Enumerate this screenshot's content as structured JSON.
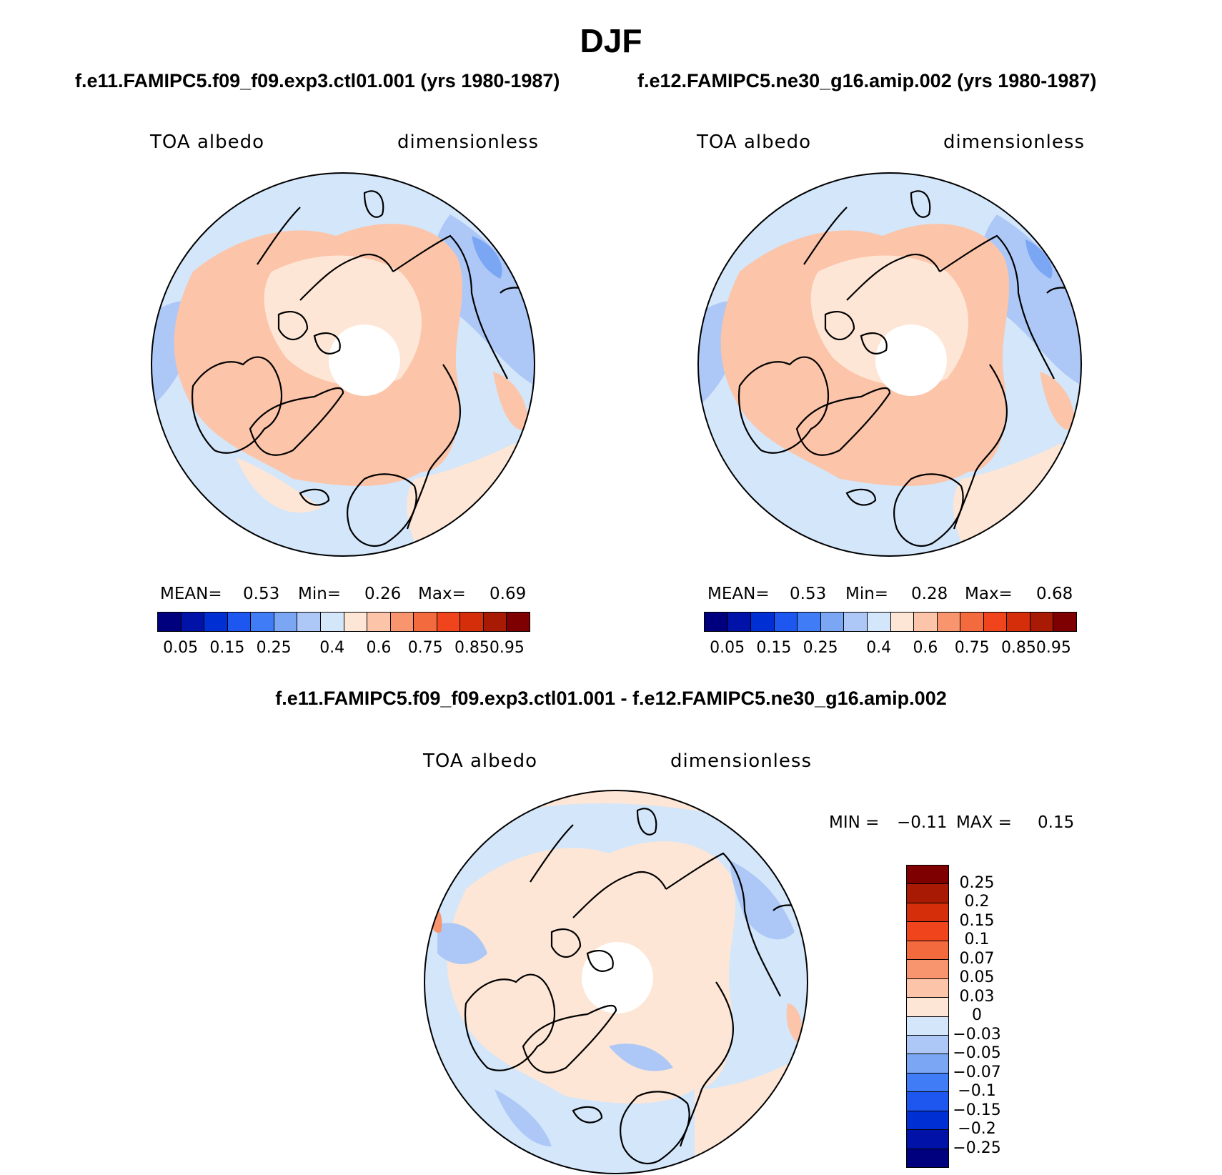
{
  "figure": {
    "title": "DJF",
    "diff_title": "f.e11.FAMIPC5.f09_f09.exp3.ctl01.001 - f.e12.FAMIPC5.ne30_g16.amip.002"
  },
  "panels": [
    {
      "id": "left",
      "case_title": "f.e11.FAMIPC5.f09_f09.exp3.ctl01.001 (yrs 1980-1987)",
      "variable": "TOA albedo",
      "units": "dimensionless",
      "stats": {
        "mean_label": "MEAN=",
        "mean": "0.53",
        "min_label": "Min=",
        "min": "0.26",
        "max_label": "Max=",
        "max": "0.69"
      },
      "colorbar_ticks": [
        "0.05",
        "0.15",
        "0.25",
        "0.4",
        "0.6",
        "0.75",
        "0.85",
        "0.95"
      ]
    },
    {
      "id": "right",
      "case_title": "f.e12.FAMIPC5.ne30_g16.amip.002 (yrs 1980-1987)",
      "variable": "TOA albedo",
      "units": "dimensionless",
      "stats": {
        "mean_label": "MEAN=",
        "mean": "0.53",
        "min_label": "Min=",
        "min": "0.28",
        "max_label": "Max=",
        "max": "0.68"
      },
      "colorbar_ticks": [
        "0.05",
        "0.15",
        "0.25",
        "0.4",
        "0.6",
        "0.75",
        "0.85",
        "0.95"
      ]
    }
  ],
  "difference_panel": {
    "variable": "TOA albedo",
    "units": "dimensionless",
    "min_label": "MIN =",
    "min": "−0.11",
    "max_label": "MAX =",
    "max": "0.15",
    "colorbar_ticks": [
      "0.25",
      "0.2",
      "0.15",
      "0.1",
      "0.07",
      "0.05",
      "0.03",
      "0",
      "−0.03",
      "−0.05",
      "−0.07",
      "−0.1",
      "−0.15",
      "−0.2",
      "−0.25"
    ]
  },
  "colors": {
    "abs_colorbar": [
      "#00007f",
      "#0012a8",
      "#0030d4",
      "#1d57f0",
      "#3f7cf5",
      "#7aa6f3",
      "#adc8f7",
      "#d3e6fa",
      "#fde6d6",
      "#fcc4a8",
      "#f9956e",
      "#f46a3f",
      "#f0441c",
      "#d42f0a",
      "#a81a04",
      "#7f0000"
    ],
    "diff_colorbar": [
      "#7f0000",
      "#a81a04",
      "#d42f0a",
      "#f0441c",
      "#f46a3f",
      "#f9956e",
      "#fcc4a8",
      "#fde6d6",
      "#d3e6fa",
      "#adc8f7",
      "#7aa6f3",
      "#3f7cf5",
      "#1d57f0",
      "#0030d4",
      "#0012a8",
      "#00007f"
    ],
    "ocean_light_blue": "#d3e6fa",
    "land_peach": "#fcc4a8",
    "light_peach": "#fde6d6",
    "mid_blue": "#adc8f7",
    "blue": "#7aa6f3"
  }
}
